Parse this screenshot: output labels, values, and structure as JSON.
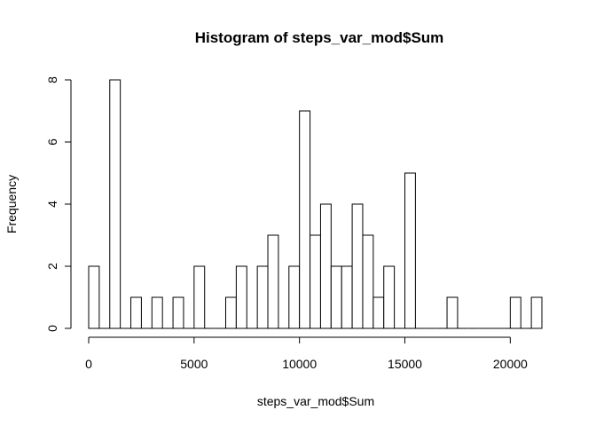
{
  "chart_data": {
    "type": "bar",
    "title": "Histogram of steps_var_mod$Sum",
    "xlabel": "steps_var_mod$Sum",
    "ylabel": "Frequency",
    "bin_width": 500,
    "bins_start": [
      0,
      500,
      1000,
      1500,
      2000,
      2500,
      3000,
      3500,
      4000,
      4500,
      5000,
      5500,
      6000,
      6500,
      7000,
      7500,
      8000,
      8500,
      9000,
      9500,
      10000,
      10500,
      11000,
      11500,
      12000,
      12500,
      13000,
      13500,
      14000,
      14500,
      15000,
      15500,
      16000,
      16500,
      17000,
      17500,
      18000,
      18500,
      19000,
      19500,
      20000,
      20500,
      21000
    ],
    "values": [
      2,
      0,
      8,
      0,
      1,
      0,
      1,
      0,
      1,
      0,
      2,
      0,
      0,
      1,
      2,
      0,
      2,
      3,
      0,
      2,
      7,
      3,
      4,
      2,
      2,
      4,
      3,
      1,
      2,
      0,
      5,
      0,
      0,
      0,
      1,
      0,
      0,
      0,
      0,
      0,
      1,
      0,
      1
    ],
    "xlim": [
      0,
      21500
    ],
    "ylim": [
      0,
      8
    ],
    "x_ticks": [
      0,
      5000,
      10000,
      15000,
      20000
    ],
    "y_ticks": [
      0,
      2,
      4,
      6,
      8
    ],
    "grid": false,
    "bar_fill": "#ffffff",
    "bar_stroke": "#000000"
  }
}
